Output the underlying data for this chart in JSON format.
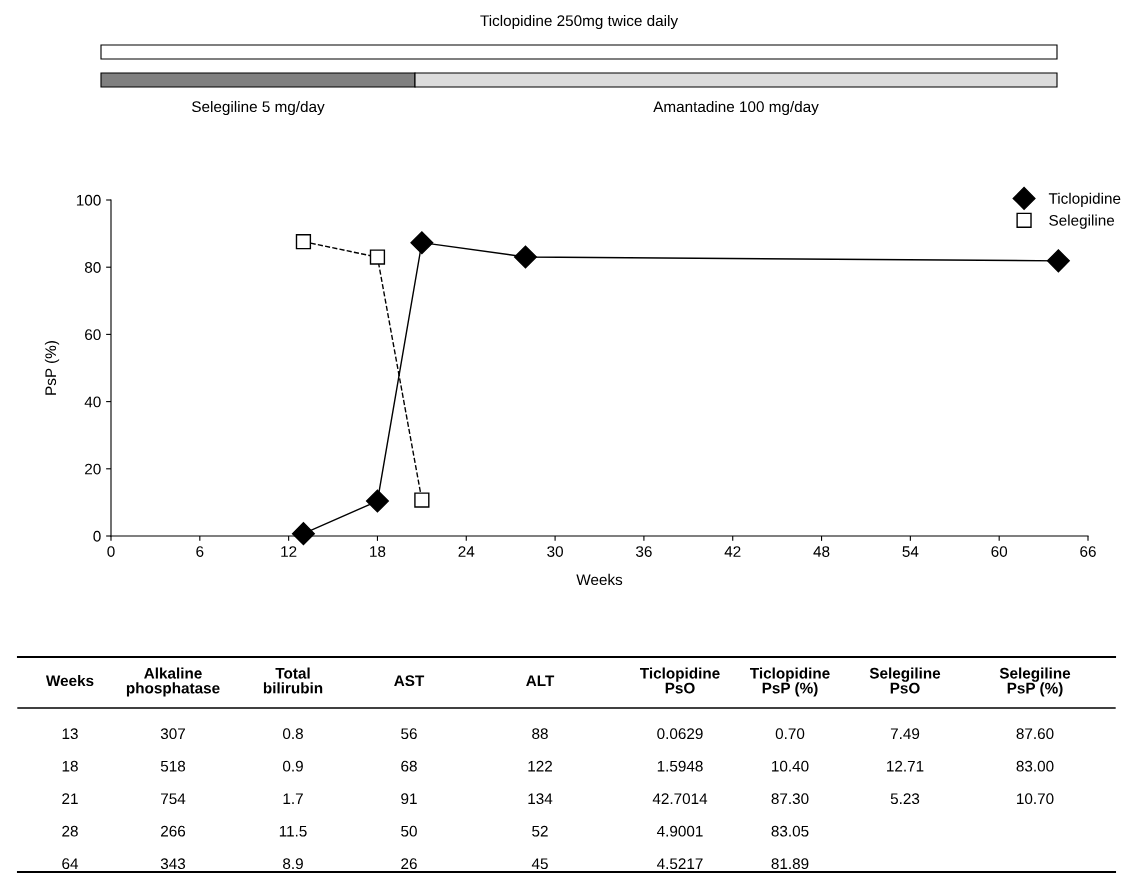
{
  "chart_data": [
    {
      "type": "line",
      "xlabel": "Weeks",
      "ylabel": "PsP (%)",
      "annotations": [
        "Ticlopidine 250mg twice daily",
        "Selegiline 5 mg/day",
        "Amantadine 100 mg/day"
      ],
      "xlim": [
        0,
        66
      ],
      "xticks": [
        0,
        6,
        12,
        18,
        24,
        30,
        36,
        42,
        48,
        54,
        60,
        66
      ],
      "ylim": [
        0,
        100
      ],
      "yticks": [
        0,
        20,
        40,
        60,
        80,
        100
      ],
      "grid": false,
      "legend": "top right",
      "series": [
        {
          "name": "Ticlopidine",
          "color": "#000000",
          "marker": "diamond",
          "line_style": "solid",
          "x": [
            13,
            18,
            21,
            28,
            64
          ],
          "values": [
            0.7,
            10.4,
            87.3,
            83.05,
            81.89
          ]
        },
        {
          "name": "Selegiline",
          "color": "#000000",
          "marker": "square",
          "line_style": "dashed",
          "x": [
            13,
            18,
            21
          ],
          "values": [
            87.6,
            83.0,
            10.7
          ]
        }
      ]
    },
    {
      "type": "other",
      "categories": [
        "Weeks",
        "Alkaline\nphosphatase",
        "Total\nbilirubin",
        "AST",
        "ALT",
        "Ticlopidine\nPsO",
        "Ticlopidine\nPsP (%)",
        "Selegiline\nPsO",
        "Selegiline\nPsP (%)"
      ],
      "cell_labels": [
        [
          "13",
          "307",
          "0.8",
          "56",
          "88",
          "0.0629",
          "0.70",
          "7.49",
          "87.60"
        ],
        [
          "18",
          "518",
          "0.9",
          "68",
          "122",
          "1.5948",
          "10.40",
          "12.71",
          "83.00"
        ],
        [
          "21",
          "754",
          "1.7",
          "91",
          "134",
          "42.7014",
          "87.30",
          "5.23",
          "10.70"
        ],
        [
          "28",
          "266",
          "11.5",
          "50",
          "52",
          "4.9001",
          "83.05",
          null,
          null
        ],
        [
          "64",
          "343",
          "8.9",
          "26",
          "45",
          "4.5217",
          "81.89",
          null,
          null
        ]
      ]
    }
  ]
}
